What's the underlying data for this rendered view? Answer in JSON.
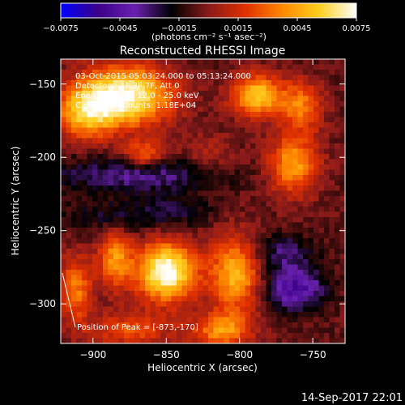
{
  "chart_data": {
    "type": "heatmap",
    "title": "Reconstructed RHESSI Image",
    "xlabel": "Heliocentric X (arcsec)",
    "ylabel": "Heliocentric Y (arcsec)",
    "xlim": [
      -922,
      -728
    ],
    "ylim": [
      -327,
      -133
    ],
    "x_ticks": [
      -900,
      -850,
      -800,
      -750
    ],
    "x_tick_labels": [
      "−900",
      "−850",
      "−800",
      "−750"
    ],
    "y_ticks": [
      -300,
      -250,
      -200,
      -150
    ],
    "y_tick_labels": [
      "−300",
      "−250",
      "−200",
      "−150"
    ],
    "colorbar": {
      "range": [
        -0.0075,
        0.0075
      ],
      "ticks": [
        -0.0075,
        -0.0045,
        -0.0015,
        0.0015,
        0.0045,
        0.0075
      ],
      "tick_labels": [
        "−0.0075",
        "−0.0045",
        "−0.0015",
        "0.0015",
        "0.0045",
        "0.0075"
      ],
      "units": "(photons cm⁻² s⁻¹ asec⁻²)",
      "colormap": [
        "#0000ff",
        "#3a0088",
        "#6a20b0",
        "#000000",
        "#8a1a1a",
        "#e03000",
        "#ff8800",
        "#ffd020",
        "#ffffff"
      ]
    },
    "annotations": [
      "03-Oct-2015 05:03:24.000 to 05:13:24.000",
      "Detectors: 1F 3F 7F, Att 0",
      "Energy Range: 12.0 - 25.0 keV",
      "Clean    Total Counts: 1.18E+04"
    ],
    "peak": {
      "x": -873,
      "y": -170,
      "label": "Position of Peak = [-873,-170]"
    },
    "blobs": [
      {
        "x": -878,
        "y": -158,
        "sx": 22,
        "sy": 14,
        "amp": 0.008
      },
      {
        "x": -905,
        "y": -170,
        "sx": 14,
        "sy": 12,
        "amp": 0.005
      },
      {
        "x": -865,
        "y": -198,
        "sx": 10,
        "sy": 7,
        "amp": 0.0035
      },
      {
        "x": -788,
        "y": -158,
        "sx": 12,
        "sy": 10,
        "amp": 0.0062
      },
      {
        "x": -758,
        "y": -165,
        "sx": 10,
        "sy": 12,
        "amp": 0.004
      },
      {
        "x": -763,
        "y": -205,
        "sx": 12,
        "sy": 14,
        "amp": 0.005
      },
      {
        "x": -850,
        "y": -278,
        "sx": 14,
        "sy": 14,
        "amp": 0.0085
      },
      {
        "x": -885,
        "y": -270,
        "sx": 8,
        "sy": 14,
        "amp": 0.0045
      },
      {
        "x": -912,
        "y": -290,
        "sx": 8,
        "sy": 16,
        "amp": 0.004
      },
      {
        "x": -803,
        "y": -280,
        "sx": 12,
        "sy": 18,
        "amp": 0.0055
      },
      {
        "x": -812,
        "y": -318,
        "sx": 14,
        "sy": 8,
        "amp": 0.0045
      },
      {
        "x": -875,
        "y": -318,
        "sx": 20,
        "sy": 8,
        "amp": 0.003
      },
      {
        "x": -820,
        "y": -198,
        "sx": 12,
        "sy": 9,
        "amp": 0.0015
      },
      {
        "x": -880,
        "y": -240,
        "sx": 30,
        "sy": 8,
        "amp": -0.0018
      },
      {
        "x": -870,
        "y": -212,
        "sx": 40,
        "sy": 8,
        "amp": -0.003
      },
      {
        "x": -762,
        "y": -290,
        "sx": 14,
        "sy": 10,
        "amp": -0.0045
      },
      {
        "x": -770,
        "y": -265,
        "sx": 14,
        "sy": 9,
        "amp": -0.0025
      },
      {
        "x": -840,
        "y": -235,
        "sx": 14,
        "sy": 8,
        "amp": -0.0012
      }
    ]
  },
  "footer": {
    "timestamp": "14-Sep-2017 22:01"
  }
}
